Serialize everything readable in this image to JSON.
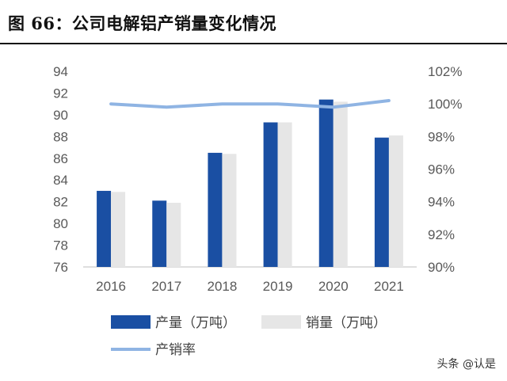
{
  "figure": {
    "title": "图 66：公司电解铝产销量变化情况"
  },
  "watermark": "头条 @认是",
  "chart_data": {
    "type": "bar",
    "categories": [
      "2016",
      "2017",
      "2018",
      "2019",
      "2020",
      "2021"
    ],
    "series": [
      {
        "name": "产量（万吨）",
        "kind": "bar",
        "axis": "left",
        "color": "#1a4fa3",
        "values": [
          83.0,
          82.1,
          86.5,
          89.3,
          91.4,
          87.9
        ]
      },
      {
        "name": "销量（万吨）",
        "kind": "bar",
        "axis": "left",
        "color": "#e6e6e6",
        "values": [
          82.9,
          81.9,
          86.4,
          89.3,
          91.2,
          88.1
        ]
      },
      {
        "name": "产销率",
        "kind": "line",
        "axis": "right",
        "color": "#8fb4e3",
        "values": [
          100.0,
          99.8,
          100.0,
          100.0,
          99.8,
          100.2
        ]
      }
    ],
    "y_left": {
      "min": 76,
      "max": 94,
      "step": 2,
      "tick_labels": [
        "76",
        "78",
        "80",
        "82",
        "84",
        "86",
        "88",
        "90",
        "92",
        "94"
      ]
    },
    "y_right": {
      "min": 90,
      "max": 102,
      "step": 2,
      "tick_labels": [
        "90%",
        "92%",
        "94%",
        "96%",
        "98%",
        "100%",
        "102%"
      ]
    },
    "legend_placement": "bottom",
    "grid": false
  }
}
